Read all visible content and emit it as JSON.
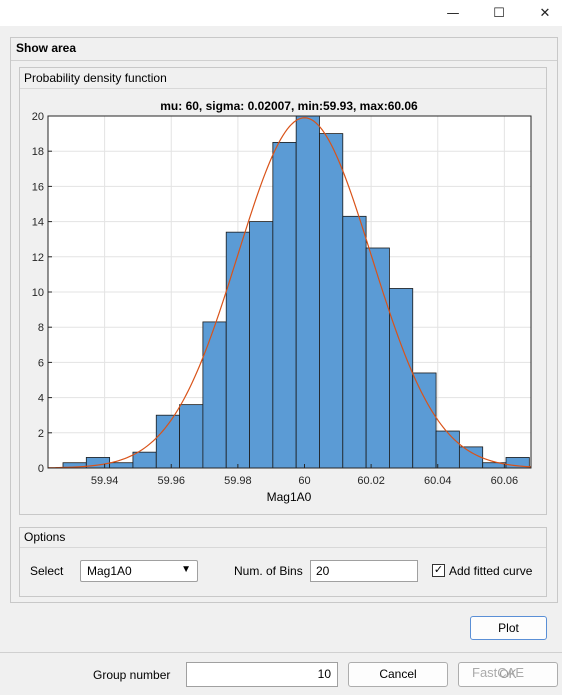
{
  "window": {
    "minimize_glyph": "—",
    "maximize_glyph": "☐",
    "close_glyph": "✕"
  },
  "panels": {
    "show_area": "Show area",
    "pdf": "Probability density function",
    "options": "Options"
  },
  "options": {
    "select_label": "Select",
    "select_value": "Mag1A0",
    "bins_label": "Num. of Bins",
    "bins_value": "20",
    "fitted_checked": true,
    "fitted_label": "Add fitted curve"
  },
  "buttons": {
    "plot": "Plot",
    "cancel": "Cancel",
    "ok": "OK"
  },
  "group": {
    "label": "Group number",
    "value": "10"
  },
  "watermark": "FastCAE",
  "colors": {
    "bar": "#5b9bd5",
    "curve": "#d95319"
  },
  "chart_data": {
    "type": "bar",
    "title": "mu: 60, sigma: 0.02007, min:59.93, max:60.06",
    "xlabel": "Mag1A0",
    "ylabel": "",
    "xlim": [
      59.923,
      60.068
    ],
    "ylim": [
      0,
      20
    ],
    "xticks": [
      59.94,
      59.96,
      59.98,
      60,
      60.02,
      60.04,
      60.06
    ],
    "yticks": [
      0,
      2,
      4,
      6,
      8,
      10,
      12,
      14,
      16,
      18,
      20
    ],
    "grid": true,
    "bin_edges": [
      59.9275,
      59.9345,
      59.9415,
      59.9485,
      59.9555,
      59.9625,
      59.9695,
      59.9765,
      59.9835,
      59.9905,
      59.9975,
      60.0045,
      60.0115,
      60.0185,
      60.0255,
      60.0325,
      60.0395,
      60.0465,
      60.0535,
      60.0605,
      60.0675
    ],
    "values": [
      0.3,
      0.6,
      0.3,
      0.9,
      3.0,
      3.6,
      8.3,
      13.4,
      14.0,
      18.5,
      20.0,
      19.0,
      14.3,
      12.5,
      10.2,
      5.4,
      2.1,
      1.2,
      0.3,
      0.6
    ],
    "fit": {
      "mu": 60,
      "sigma": 0.02007,
      "peak": 19.9
    }
  }
}
